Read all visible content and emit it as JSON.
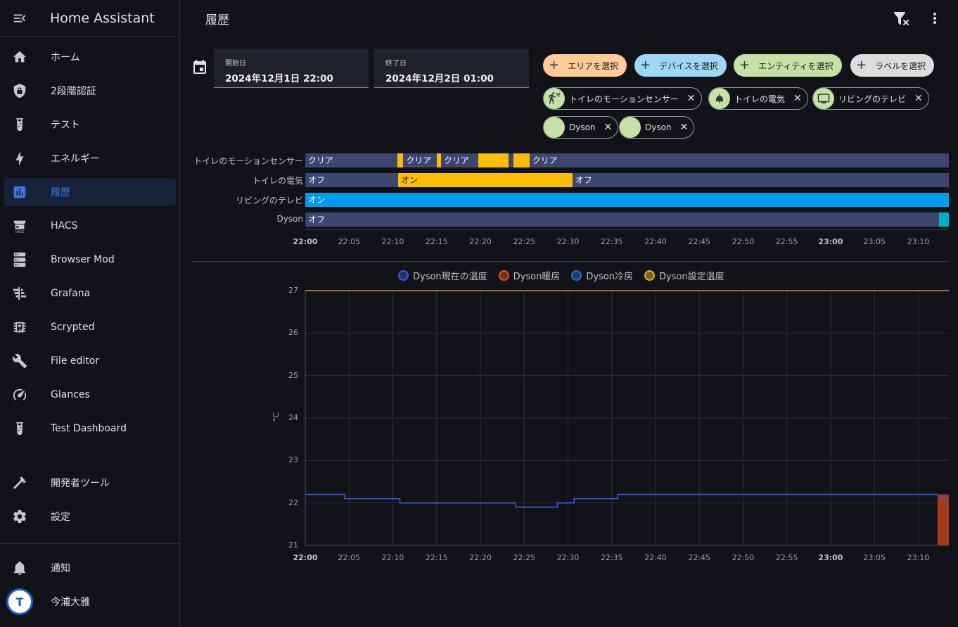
{
  "sidebar": {
    "title": "Home Assistant",
    "items": [
      {
        "label": "ホーム",
        "icon": "home-icon"
      },
      {
        "label": "2段階認証",
        "icon": "shield-lock-icon"
      },
      {
        "label": "テスト",
        "icon": "test-tube-icon"
      },
      {
        "label": "エネルギー",
        "icon": "lightning-icon"
      },
      {
        "label": "履歴",
        "icon": "chart-box-icon",
        "active": true
      },
      {
        "label": "HACS",
        "icon": "hacs-icon"
      },
      {
        "label": "Browser Mod",
        "icon": "server-icon"
      },
      {
        "label": "Grafana",
        "icon": "gantt-icon"
      },
      {
        "label": "Scrypted",
        "icon": "chip-icon"
      },
      {
        "label": "File editor",
        "icon": "wrench-icon"
      },
      {
        "label": "Glances",
        "icon": "speedometer-icon"
      },
      {
        "label": "Test Dashboard",
        "icon": "test-tube-icon"
      }
    ],
    "dev_tools": "開発者ツール",
    "settings": "設定",
    "notifications": "通知",
    "user": "今浦大雅",
    "avatar_text": "T"
  },
  "header": {
    "title": "履歴"
  },
  "date_range": {
    "start_label": "開始日",
    "start_value": "2024年12月1日 22:00",
    "end_label": "終了日",
    "end_value": "2024年12月2日 01:00"
  },
  "pickers": [
    {
      "label": "エリアを選択",
      "color": "#ffcc99"
    },
    {
      "label": "デバイスを選択",
      "color": "#9fd7f7"
    },
    {
      "label": "エンティティを選択",
      "color": "#c5e1a5"
    },
    {
      "label": "ラベルを選択",
      "color": "#dcdcdc"
    }
  ],
  "entities": [
    {
      "label": "トイレのモーションセンサー",
      "icon": "motion-sensor-icon"
    },
    {
      "label": "トイレの電気",
      "icon": "ceiling-light-icon"
    },
    {
      "label": "リビングのテレビ",
      "icon": "television-icon"
    },
    {
      "label": "Dyson",
      "icon": ""
    },
    {
      "label": "Dyson",
      "icon": ""
    }
  ],
  "timeline": {
    "rows": [
      {
        "name": "トイレのモーションセンサー",
        "segments": [
          {
            "state": "クリア",
            "from": 0,
            "to": 10.5,
            "color": "#3e4670"
          },
          {
            "state": "",
            "from": 10.5,
            "to": 11.2,
            "color": "#fbbc0a"
          },
          {
            "state": "クリア",
            "from": 11.2,
            "to": 15.0,
            "color": "#3e4670"
          },
          {
            "state": "",
            "from": 15.0,
            "to": 15.5,
            "color": "#fbbc0a"
          },
          {
            "state": "クリア",
            "from": 15.5,
            "to": 19.8,
            "color": "#3e4670"
          },
          {
            "state": "",
            "from": 19.8,
            "to": 23.2,
            "color": "#fbbc0a"
          },
          {
            "state": "",
            "from": 23.2,
            "to": 23.8,
            "color": "#3e4670"
          },
          {
            "state": "",
            "from": 23.8,
            "to": 25.6,
            "color": "#fbbc0a"
          },
          {
            "state": "クリア",
            "from": 25.6,
            "to": 73.5,
            "color": "#3e4670"
          }
        ]
      },
      {
        "name": "トイレの電気",
        "segments": [
          {
            "state": "オフ",
            "from": 0,
            "to": 10.6,
            "color": "#3e4670"
          },
          {
            "state": "オン",
            "from": 10.6,
            "to": 30.5,
            "color": "#fbbc0a"
          },
          {
            "state": "オフ",
            "from": 30.5,
            "to": 73.5,
            "color": "#3e4670"
          }
        ]
      },
      {
        "name": "リビングのテレビ",
        "segments": [
          {
            "state": "オン",
            "from": 0,
            "to": 73.5,
            "color": "#039bee"
          }
        ]
      },
      {
        "name": "Dyson",
        "segments": [
          {
            "state": "オフ",
            "from": 0,
            "to": 72.4,
            "color": "#3e4670"
          },
          {
            "state": "",
            "from": 72.4,
            "to": 73.5,
            "color": "#00b0c8"
          }
        ]
      }
    ],
    "ticks": [
      "22:00",
      "22:05",
      "22:10",
      "22:15",
      "22:20",
      "22:25",
      "22:30",
      "22:35",
      "22:40",
      "22:45",
      "22:50",
      "22:55",
      "23:00",
      "23:05",
      "23:10"
    ],
    "bold_ticks": [
      "22:00",
      "23:00"
    ]
  },
  "chart_data": {
    "type": "line",
    "x_unit": "minutes since 22:00",
    "x_ticks": [
      "22:00",
      "22:05",
      "22:10",
      "22:15",
      "22:20",
      "22:25",
      "22:30",
      "22:35",
      "22:40",
      "22:45",
      "22:50",
      "22:55",
      "23:00",
      "23:05",
      "23:10"
    ],
    "xlim": [
      0,
      73.5
    ],
    "ylim": [
      21,
      27
    ],
    "y_ticks": [
      21,
      22,
      23,
      24,
      25,
      26,
      27
    ],
    "ylabel": "°C",
    "legend_position": "top",
    "grid": true,
    "series": [
      {
        "name": "Dyson現在の温度",
        "color": "#3d5bd9",
        "points": [
          [
            0,
            22.2
          ],
          [
            4.5,
            22.2
          ],
          [
            4.5,
            22.1
          ],
          [
            10.8,
            22.1
          ],
          [
            10.8,
            22.0
          ],
          [
            24,
            22.0
          ],
          [
            24,
            21.9
          ],
          [
            28.8,
            21.9
          ],
          [
            28.8,
            22.0
          ],
          [
            30.7,
            22.0
          ],
          [
            30.7,
            22.1
          ],
          [
            35.7,
            22.1
          ],
          [
            35.7,
            22.2
          ],
          [
            72.2,
            22.2
          ],
          [
            72.2,
            22.2
          ],
          [
            72.8,
            22.1
          ],
          [
            73.5,
            22.1
          ]
        ]
      },
      {
        "name": "Dyson暖房",
        "color": "#d9572f",
        "fill_from": 72.2,
        "points": [
          [
            72.2,
            22.2
          ],
          [
            73.5,
            22.2
          ]
        ]
      },
      {
        "name": "Dyson冷房",
        "color": "#2b6fd4",
        "points": []
      },
      {
        "name": "Dyson設定温度",
        "color": "#e0b143",
        "points": [
          [
            0,
            27
          ],
          [
            73.5,
            27
          ]
        ]
      }
    ]
  }
}
